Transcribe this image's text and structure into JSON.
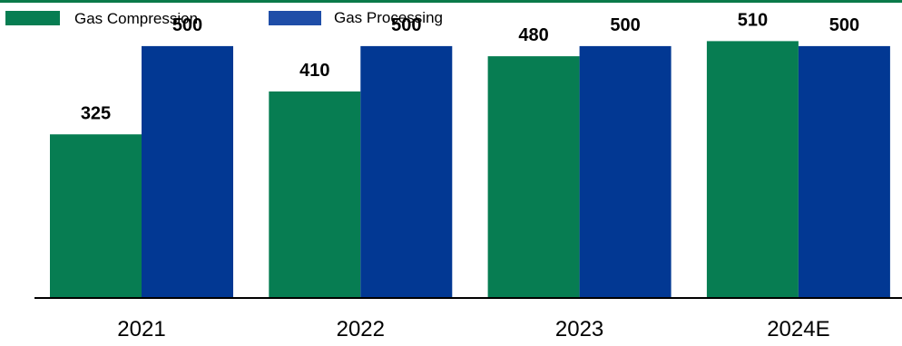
{
  "colors": {
    "top_rule": "#0a7a4a",
    "gas_compression": "#077d52",
    "gas_processing": "#023893",
    "legend_processing_swatch": "#1f4ea8",
    "axis": "#000000",
    "text": "#000000"
  },
  "chart_data": {
    "type": "bar",
    "title": "",
    "xlabel": "",
    "ylabel": "",
    "grid": false,
    "legend": "top-left",
    "categories": [
      "2021",
      "2022",
      "2023",
      "2024E"
    ],
    "series": [
      {
        "name": "Gas Compression",
        "values": [
          325,
          410,
          480,
          510
        ]
      },
      {
        "name": "Gas Processing",
        "values": [
          500,
          500,
          500,
          500
        ]
      }
    ],
    "ylim": [
      0,
      570
    ]
  }
}
